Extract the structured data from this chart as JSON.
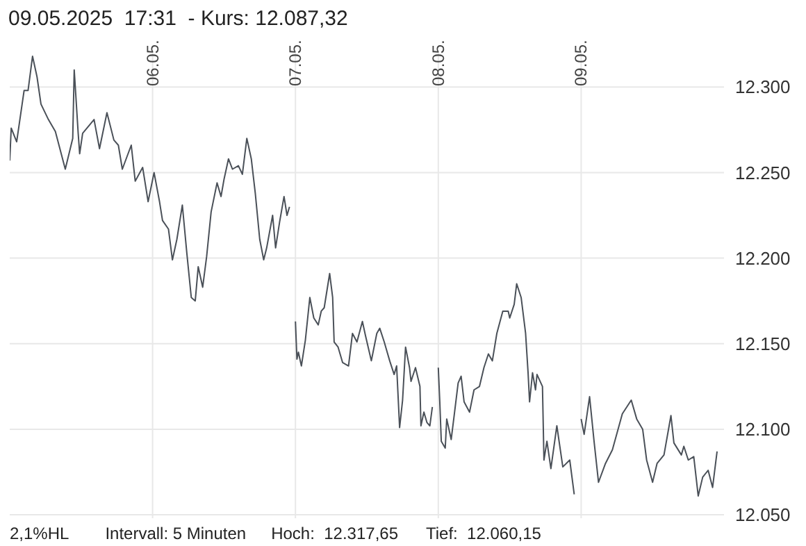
{
  "chart_data": {
    "type": "line",
    "title": "09.05.2025  17:31  - Kurs: 12.087,32",
    "annotations": [
      "2,1%HL",
      "Intervall: 5 Minuten",
      "Hoch:  12.317,65",
      "Tief:  12.060,15"
    ],
    "color": "#4a5058",
    "x": [
      "2025-05-05T00:00",
      "2025-05-05T00:15",
      "2025-05-05T01:10",
      "2025-05-05T02:25",
      "2025-05-05T03:05",
      "2025-05-05T03:50",
      "2025-05-05T04:35",
      "2025-05-05T05:15",
      "2025-05-05T06:30",
      "2025-05-05T07:40",
      "2025-05-05T09:20",
      "2025-05-05T10:35",
      "2025-05-05T10:50",
      "2025-05-05T11:30",
      "2025-05-05T11:45",
      "2025-05-05T12:15",
      "2025-05-05T14:10",
      "2025-05-05T15:05",
      "2025-05-05T16:20",
      "2025-05-05T17:30",
      "2025-05-05T18:15",
      "2025-05-05T18:55",
      "2025-05-05T20:25",
      "2025-05-05T21:05",
      "2025-05-05T22:20",
      "2025-05-05T23:15",
      "2025-05-06T00:15",
      "2025-05-06T01:10",
      "2025-05-06T01:40",
      "2025-05-06T02:40",
      "2025-05-06T03:20",
      "2025-05-06T04:05",
      "2025-05-06T05:00",
      "2025-05-06T05:45",
      "2025-05-06T06:30",
      "2025-05-06T07:10",
      "2025-05-06T07:40",
      "2025-05-06T08:25",
      "2025-05-06T09:05",
      "2025-05-06T09:50",
      "2025-05-06T10:50",
      "2025-05-06T11:30",
      "2025-05-06T12:00",
      "2025-05-06T12:45",
      "2025-05-06T13:25",
      "2025-05-06T14:25",
      "2025-05-06T15:05",
      "2025-05-06T15:50",
      "2025-05-06T16:35",
      "2025-05-06T17:15",
      "2025-05-06T18:00",
      "2025-05-06T18:40",
      "2025-05-06T19:10",
      "2025-05-06T20:10",
      "2025-05-06T20:40",
      "2025-05-06T21:20",
      "2025-05-06T22:05",
      "2025-05-06T22:35",
      "2025-05-06T23:00",
      "2025-05-06T23:30",
      "2025-05-07T00:00",
      "2025-05-07T00:15",
      "2025-05-07T00:30",
      "2025-05-07T01:00",
      "2025-05-07T01:40",
      "2025-05-07T02:25",
      "2025-05-07T03:05",
      "2025-05-07T03:50",
      "2025-05-07T04:20",
      "2025-05-07T04:50",
      "2025-05-07T05:45",
      "2025-05-07T06:15",
      "2025-05-07T06:30",
      "2025-05-07T07:10",
      "2025-05-07T07:55",
      "2025-05-07T08:55",
      "2025-05-07T09:35",
      "2025-05-07T10:20",
      "2025-05-07T11:15",
      "2025-05-07T11:45",
      "2025-05-07T12:45",
      "2025-05-07T13:40",
      "2025-05-07T14:10",
      "2025-05-07T14:55",
      "2025-05-07T15:50",
      "2025-05-07T16:35",
      "2025-05-07T17:00",
      "2025-05-07T17:30",
      "2025-05-07T18:00",
      "2025-05-07T18:30",
      "2025-05-07T19:10",
      "2025-05-07T19:25",
      "2025-05-07T20:10",
      "2025-05-07T20:55",
      "2025-05-07T21:05",
      "2025-05-07T21:35",
      "2025-05-07T22:05",
      "2025-05-07T22:35",
      "2025-05-07T23:00",
      "2025-05-07T23:30",
      "2025-05-08T00:00",
      "2025-05-08T00:15",
      "2025-05-08T00:30",
      "2025-05-08T01:10",
      "2025-05-08T01:25",
      "2025-05-08T02:10",
      "2025-05-08T02:40",
      "2025-05-08T03:20",
      "2025-05-08T03:50",
      "2025-05-08T04:20",
      "2025-05-08T05:15",
      "2025-05-08T06:00",
      "2025-05-08T06:55",
      "2025-05-08T07:40",
      "2025-05-08T08:25",
      "2025-05-08T09:05",
      "2025-05-08T09:50",
      "2025-05-08T10:50",
      "2025-05-08T11:45",
      "2025-05-08T12:00",
      "2025-05-08T12:45",
      "2025-05-08T13:10",
      "2025-05-08T13:55",
      "2025-05-08T14:40",
      "2025-05-08T15:05",
      "2025-05-08T15:20",
      "2025-05-08T15:50",
      "2025-05-08T16:20",
      "2025-05-08T16:35",
      "2025-05-08T17:30",
      "2025-05-08T17:45",
      "2025-05-08T18:15",
      "2025-05-08T18:55",
      "2025-05-08T19:55",
      "2025-05-08T20:55",
      "2025-05-08T22:05",
      "2025-05-08T22:50",
      "2025-05-08T23:15",
      "2025-05-09T00:00",
      "2025-05-09T00:30",
      "2025-05-09T01:25",
      "2025-05-09T02:10",
      "2025-05-09T02:55",
      "2025-05-09T04:05",
      "2025-05-09T05:15",
      "2025-05-09T06:55",
      "2025-05-09T08:25",
      "2025-05-09T09:20",
      "2025-05-09T10:20",
      "2025-05-09T11:00",
      "2025-05-09T12:00",
      "2025-05-09T12:45",
      "2025-05-09T13:55",
      "2025-05-09T15:05",
      "2025-05-09T15:35",
      "2025-05-09T16:50",
      "2025-05-09T17:15",
      "2025-05-09T18:00",
      "2025-05-09T18:55",
      "2025-05-09T19:40",
      "2025-05-09T20:25",
      "2025-05-09T21:20",
      "2025-05-09T22:05",
      "2025-05-09T22:50"
    ],
    "values": [
      12257,
      12276,
      12268,
      12298,
      12298,
      12318,
      12306,
      12290,
      12281,
      12274,
      12252,
      12270,
      12310,
      12273,
      12261,
      12273,
      12281,
      12264,
      12285,
      12269,
      12266,
      12252,
      12266,
      12245,
      12253,
      12233,
      12250,
      12233,
      12222,
      12217,
      12199,
      12211,
      12231,
      12203,
      12177,
      12175,
      12195,
      12183,
      12201,
      12227,
      12244,
      12236,
      12246,
      12258,
      12252,
      12254,
      12249,
      12270,
      12258,
      12238,
      12211,
      12199,
      12206,
      12225,
      12206,
      12221,
      12236,
      12225,
      12230,
      null,
      12163,
      12141,
      12145,
      12137,
      12152,
      12177,
      12165,
      12161,
      12169,
      12171,
      12191,
      12177,
      12151,
      12148,
      12139,
      12137,
      12156,
      12151,
      12163,
      12155,
      12140,
      12156,
      12159,
      12151,
      12140,
      12132,
      12137,
      12101,
      12117,
      12148,
      12136,
      12128,
      12136,
      12125,
      12102,
      12110,
      12104,
      12102,
      12113,
      null,
      12136,
      12116,
      12093,
      12089,
      12106,
      12094,
      12108,
      12127,
      12131,
      12116,
      12110,
      12123,
      12125,
      12136,
      12144,
      12140,
      12156,
      12169,
      12169,
      12165,
      12173,
      12185,
      12177,
      12156,
      12133,
      12116,
      12133,
      12123,
      12132,
      12125,
      12082,
      12093,
      12077,
      12102,
      12078,
      12082,
      12062,
      null,
      12106,
      12097,
      12119,
      12093,
      12069,
      12080,
      12088,
      12109,
      12117,
      12106,
      12100,
      12082,
      12069,
      12080,
      12085,
      12108,
      12092,
      12085,
      12090,
      12082,
      12084,
      12061,
      12072,
      12076,
      12066,
      12087
    ],
    "xlim": [
      "2025-05-05",
      "2025-05-10"
    ],
    "xticks": [
      {
        "value": "2025-05-06",
        "label": "06.05."
      },
      {
        "value": "2025-05-07",
        "label": "07.05."
      },
      {
        "value": "2025-05-08",
        "label": "08.05."
      },
      {
        "value": "2025-05-09",
        "label": "09.05."
      }
    ],
    "ylim": [
      12048,
      12320
    ],
    "yticks": [
      {
        "value": 12050,
        "label": "12.050"
      },
      {
        "value": 12100,
        "label": "12.100"
      },
      {
        "value": 12150,
        "label": "12.150"
      },
      {
        "value": 12200,
        "label": "12.200"
      },
      {
        "value": 12250,
        "label": "12.250"
      },
      {
        "value": 12300,
        "label": "12.300"
      }
    ],
    "grid": true,
    "marker": "none",
    "line_style": "solid"
  }
}
